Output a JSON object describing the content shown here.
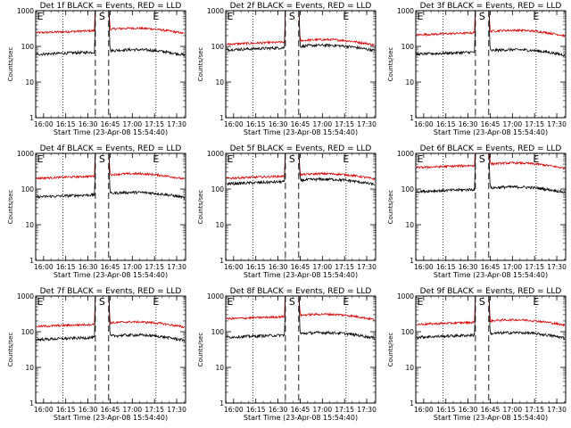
{
  "chart_data": {
    "type": "line",
    "panels": [
      {
        "title": "Det 1f BLACK = Events, RED = LLD",
        "black_level": 60,
        "red_level": 240
      },
      {
        "title": "Det 2f BLACK = Events, RED = LLD",
        "black_level": 80,
        "red_level": 115
      },
      {
        "title": "Det 3f BLACK = Events, RED = LLD",
        "black_level": 60,
        "red_level": 210
      },
      {
        "title": "Det 4f BLACK = Events, RED = LLD",
        "black_level": 60,
        "red_level": 200
      },
      {
        "title": "Det 5f BLACK = Events, RED = LLD",
        "black_level": 140,
        "red_level": 200
      },
      {
        "title": "Det 6f BLACK = Events, RED = LLD",
        "black_level": 85,
        "red_level": 400
      },
      {
        "title": "Det 7f BLACK = Events, RED = LLD",
        "black_level": 60,
        "red_level": 140
      },
      {
        "title": "Det 8f BLACK = Events, RED = LLD",
        "black_level": 70,
        "red_level": 230
      },
      {
        "title": "Det 9f BLACK = Events, RED = LLD",
        "black_level": 70,
        "red_level": 160
      }
    ],
    "xlabel": "Start Time (23-Apr-08 15:54:40)",
    "ylabel": "Counts/sec",
    "x_ticks": [
      "16:00",
      "16:15",
      "16:30",
      "16:45",
      "17:00",
      "17:15",
      "17:30"
    ],
    "y_ticks": [
      "1",
      "10",
      "100",
      "1000"
    ],
    "yscale": "log",
    "ylim": [
      1,
      1000
    ],
    "markers": {
      "start": "S",
      "end": "E"
    },
    "series_colors": {
      "events": "#000000",
      "lld": "#d40000"
    }
  }
}
